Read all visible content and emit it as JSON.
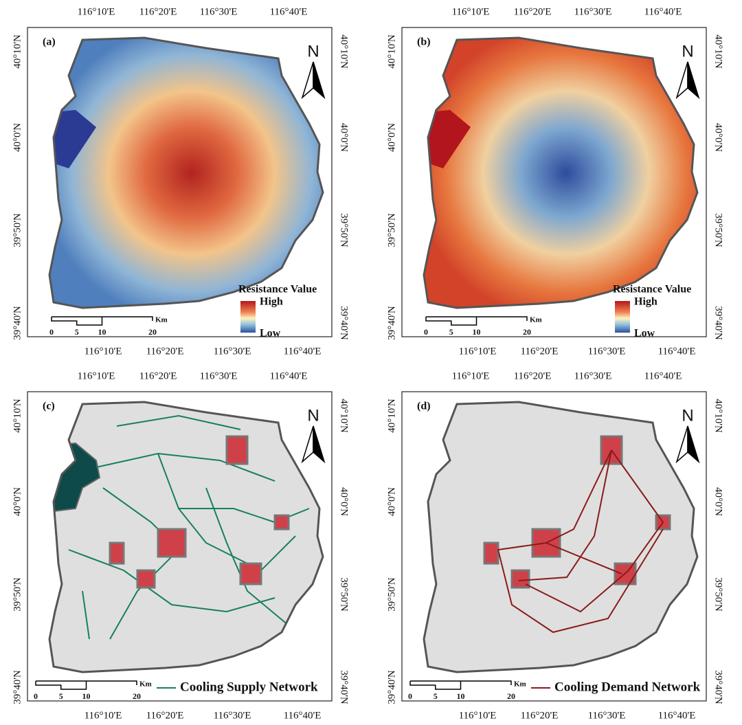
{
  "lon_labels": [
    "116°10'E",
    "116°20'E",
    "116°30'E",
    "116°40'E"
  ],
  "lat_labels": [
    "40°10'N",
    "40°0'N",
    "39°50'N",
    "39°40'N"
  ],
  "north": "N",
  "scale_bar": {
    "ticks": [
      0,
      5,
      10,
      20
    ],
    "unit": "Km"
  },
  "panels": [
    {
      "label": "(a)",
      "legend": {
        "title": "Resistance Value",
        "high": "High",
        "low": "Low"
      }
    },
    {
      "label": "(b)",
      "legend": {
        "title": "Resistance Value",
        "high": "High",
        "low": "Low"
      }
    },
    {
      "label": "(c)",
      "legend": {
        "line": "Cooling Supply Network"
      }
    },
    {
      "label": "(d)",
      "legend": {
        "line": "Cooling Demand Network"
      }
    }
  ]
}
